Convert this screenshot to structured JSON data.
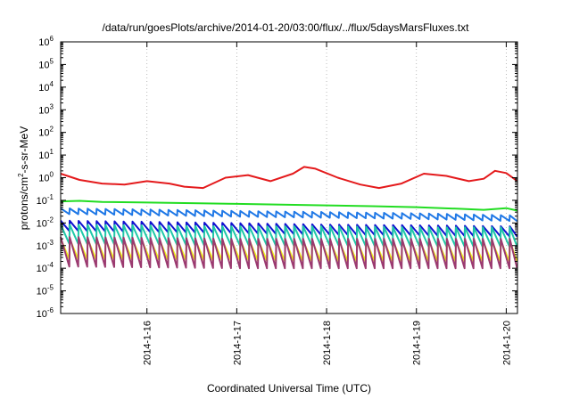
{
  "chart_data": {
    "type": "line",
    "title": "/data/run/goesPlots/archive/2014-01-20/03:00/flux/../flux/5daysMarsFluxes.txt",
    "xlabel": "Coordinated Universal Time (UTC)",
    "ylabel_parts": [
      "protons/cm",
      "2",
      "-s-sr-MeV"
    ],
    "y_scale": "log",
    "ylim": [
      1e-06,
      1000000.0
    ],
    "y_ticks": [
      {
        "base": "10",
        "exp": "-6",
        "value": 1e-06
      },
      {
        "base": "10",
        "exp": "-5",
        "value": 1e-05
      },
      {
        "base": "10",
        "exp": "-4",
        "value": 0.0001
      },
      {
        "base": "10",
        "exp": "-3",
        "value": 0.001
      },
      {
        "base": "10",
        "exp": "-2",
        "value": 0.01
      },
      {
        "base": "10",
        "exp": "-1",
        "value": 0.1
      },
      {
        "base": "10",
        "exp": "0",
        "value": 1
      },
      {
        "base": "10",
        "exp": "1",
        "value": 10
      },
      {
        "base": "10",
        "exp": "2",
        "value": 100
      },
      {
        "base": "10",
        "exp": "3",
        "value": 1000
      },
      {
        "base": "10",
        "exp": "4",
        "value": 10000
      },
      {
        "base": "10",
        "exp": "5",
        "value": 100000
      },
      {
        "base": "10",
        "exp": "6",
        "value": 1000000
      }
    ],
    "xlim": [
      "2014-01-15T00:57",
      "2014-01-20T03:00"
    ],
    "x_ticks": [
      {
        "label": "2014-1-16",
        "value": "2014-01-16"
      },
      {
        "label": "2014-1-17",
        "value": "2014-01-17"
      },
      {
        "label": "2014-1-18",
        "value": "2014-01-18"
      },
      {
        "label": "2014-1-19",
        "value": "2014-01-19"
      },
      {
        "label": "2014-1-20",
        "value": "2014-01-20"
      }
    ],
    "grid": true,
    "series": [
      {
        "color": "#e41a1c",
        "x": [
          "2014-01-15T00:57",
          "2014-01-15T06:00",
          "2014-01-15T12:00",
          "2014-01-15T18:00",
          "2014-01-16T00:00",
          "2014-01-16T06:00",
          "2014-01-16T10:00",
          "2014-01-16T15:00",
          "2014-01-16T21:00",
          "2014-01-17T03:00",
          "2014-01-17T09:00",
          "2014-01-17T15:00",
          "2014-01-17T18:00",
          "2014-01-17T21:00",
          "2014-01-18T03:00",
          "2014-01-18T09:00",
          "2014-01-18T14:00",
          "2014-01-18T20:00",
          "2014-01-19T02:00",
          "2014-01-19T08:00",
          "2014-01-19T14:00",
          "2014-01-19T18:00",
          "2014-01-19T21:00",
          "2014-01-20T00:00",
          "2014-01-20T03:00"
        ],
        "y": [
          1.5,
          0.8,
          0.55,
          0.5,
          0.7,
          0.55,
          0.4,
          0.35,
          1.0,
          1.3,
          0.7,
          1.5,
          3.0,
          2.5,
          1.0,
          0.5,
          0.35,
          0.55,
          1.5,
          1.2,
          0.7,
          0.9,
          2.0,
          1.6,
          0.7
        ]
      },
      {
        "color": "#22dd22",
        "x": [
          "2014-01-15T00:57",
          "2014-01-15T06:00",
          "2014-01-15T12:00",
          "2014-01-16T00:00",
          "2014-01-16T12:00",
          "2014-01-17T00:00",
          "2014-01-17T12:00",
          "2014-01-18T00:00",
          "2014-01-18T12:00",
          "2014-01-19T00:00",
          "2014-01-19T12:00",
          "2014-01-19T18:00",
          "2014-01-20T00:00",
          "2014-01-20T03:00"
        ],
        "y": [
          0.09,
          0.095,
          0.085,
          0.08,
          0.075,
          0.07,
          0.065,
          0.06,
          0.055,
          0.05,
          0.042,
          0.038,
          0.045,
          0.035
        ]
      },
      {
        "color": "#1f78e6",
        "spike_period_h": 2.4,
        "spike_jump_decades": 0.25,
        "x": [
          "2014-01-15T00:57",
          "2014-01-16T00:00",
          "2014-01-17T00:00",
          "2014-01-18T00:00",
          "2014-01-19T00:00",
          "2014-01-20T03:00"
        ],
        "y": [
          0.025,
          0.022,
          0.019,
          0.017,
          0.015,
          0.012
        ]
      },
      {
        "color": "#1010d0",
        "spike_period_h": 2.4,
        "spike_jump_decades": 0.45,
        "x": [
          "2014-01-15T00:57",
          "2014-01-16T00:00",
          "2014-01-17T00:00",
          "2014-01-18T00:00",
          "2014-01-19T00:00",
          "2014-01-20T03:00"
        ],
        "y": [
          0.0045,
          0.004,
          0.0035,
          0.003,
          0.0028,
          0.0025
        ]
      },
      {
        "color": "#1fc8a8",
        "spike_period_h": 2.4,
        "spike_jump_decades": 0.85,
        "x": [
          "2014-01-15T00:57",
          "2014-01-16T00:00",
          "2014-01-17T00:00",
          "2014-01-18T00:00",
          "2014-01-19T00:00",
          "2014-01-20T03:00"
        ],
        "y": [
          0.0012,
          0.0011,
          0.001,
          0.001,
          0.0009,
          0.0009
        ]
      },
      {
        "color": "#f0f018",
        "spike_period_h": 2.4,
        "spike_jump_decades": 0.9,
        "x": [
          "2014-01-15T00:57",
          "2014-01-16T00:00",
          "2014-01-17T00:00",
          "2014-01-18T00:00",
          "2014-01-19T00:00",
          "2014-01-20T03:00"
        ],
        "y": [
          0.00025,
          0.00023,
          0.00022,
          0.0002,
          0.0002,
          0.0002
        ]
      },
      {
        "color": "#9b3a70",
        "spike_period_h": 2.4,
        "spike_jump_decades": 1.3,
        "x": [
          "2014-01-15T00:57",
          "2014-01-16T00:00",
          "2014-01-17T00:00",
          "2014-01-18T00:00",
          "2014-01-19T00:00",
          "2014-01-20T03:00"
        ],
        "y": [
          0.00012,
          0.00011,
          0.0001,
          0.0001,
          0.0001,
          0.0001
        ]
      }
    ]
  }
}
